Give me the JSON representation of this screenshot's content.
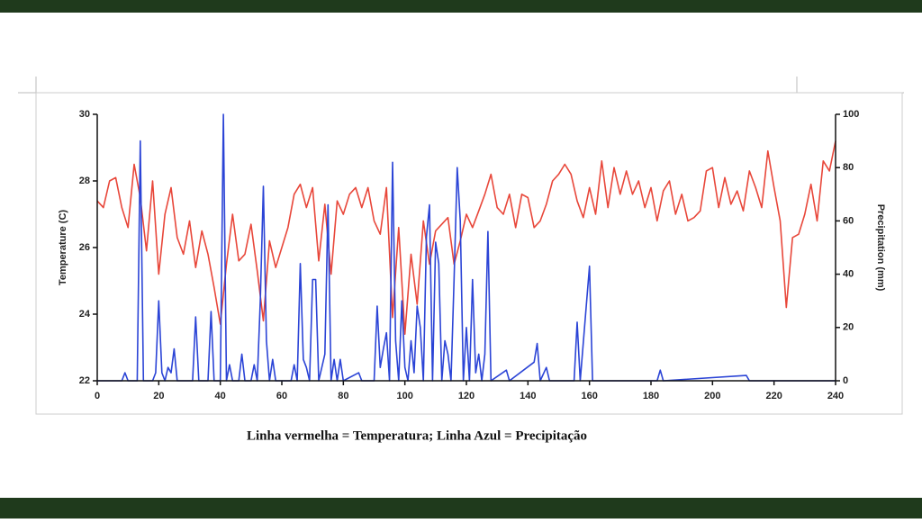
{
  "chart_data": {
    "type": "line",
    "ylabel": "Temperature (C)",
    "y2label": "Precipitation (mm)",
    "caption": "Linha vermelha = Temperatura; Linha Azul = Precipitação",
    "xlim": [
      0,
      240
    ],
    "xticks": [
      0,
      20,
      40,
      60,
      80,
      100,
      120,
      140,
      160,
      180,
      200,
      220,
      240
    ],
    "ylim": [
      22,
      30
    ],
    "yticks": [
      22,
      24,
      26,
      28,
      30
    ],
    "y2lim": [
      0,
      100
    ],
    "y2ticks": [
      0,
      20,
      40,
      60,
      80,
      100
    ],
    "series": [
      {
        "color": "#e8473a",
        "x": [
          0,
          2,
          4,
          6,
          8,
          10,
          12,
          14,
          16,
          18,
          20,
          22,
          24,
          26,
          28,
          30,
          32,
          34,
          36,
          38,
          40,
          42,
          44,
          46,
          48,
          50,
          52,
          54,
          56,
          58,
          60,
          62,
          64,
          66,
          68,
          70,
          72,
          74,
          76,
          78,
          80,
          82,
          84,
          86,
          88,
          90,
          92,
          94,
          96,
          98,
          100,
          102,
          104,
          106,
          108,
          110,
          112,
          114,
          116,
          118,
          120,
          122,
          124,
          126,
          128,
          130,
          132,
          134,
          136,
          138,
          140,
          142,
          144,
          146,
          148,
          150,
          152,
          154,
          156,
          158,
          160,
          162,
          164,
          166,
          168,
          170,
          172,
          174,
          176,
          178,
          180,
          182,
          184,
          186,
          188,
          190,
          192,
          194,
          196,
          198,
          200,
          202,
          204,
          206,
          208,
          210,
          212,
          214,
          216,
          218,
          220,
          222,
          224,
          226,
          228,
          230,
          232,
          234,
          236,
          238,
          240
        ],
        "values": [
          27.4,
          27.2,
          28.0,
          28.1,
          27.2,
          26.6,
          28.5,
          27.5,
          25.9,
          28.0,
          25.2,
          27.0,
          27.8,
          26.3,
          25.8,
          26.8,
          25.4,
          26.5,
          25.8,
          24.8,
          23.7,
          25.5,
          27.0,
          25.6,
          25.8,
          26.7,
          25.3,
          23.8,
          26.2,
          25.4,
          26.0,
          26.6,
          27.6,
          27.9,
          27.2,
          27.8,
          25.6,
          27.3,
          25.2,
          27.4,
          27.0,
          27.6,
          27.8,
          27.2,
          27.8,
          26.8,
          26.4,
          27.8,
          23.9,
          26.6,
          23.4,
          25.8,
          24.3,
          26.8,
          25.5,
          26.5,
          26.7,
          26.9,
          25.5,
          26.2,
          27.0,
          26.6,
          27.1,
          27.6,
          28.2,
          27.2,
          27.0,
          27.6,
          26.6,
          27.6,
          27.5,
          26.6,
          26.8,
          27.3,
          28.0,
          28.2,
          28.5,
          28.2,
          27.4,
          26.9,
          27.8,
          27.0,
          28.6,
          27.2,
          28.4,
          27.6,
          28.3,
          27.6,
          28.0,
          27.2,
          27.8,
          26.8,
          27.7,
          28.0,
          27.0,
          27.6,
          26.8,
          26.9,
          27.1,
          28.3,
          28.4,
          27.2,
          28.1,
          27.3,
          27.7,
          27.1,
          28.3,
          27.8,
          27.2,
          28.9,
          27.8,
          26.8,
          24.2,
          26.3,
          26.4,
          27.0,
          27.9,
          26.8,
          28.6,
          28.3,
          29.2
        ]
      },
      {
        "color": "#2b44d6",
        "axis": "y2",
        "x": [
          0,
          8,
          9,
          10,
          13,
          14,
          15,
          18,
          19,
          20,
          21,
          22,
          23,
          24,
          25,
          26,
          31,
          32,
          33,
          36,
          37,
          38,
          40,
          41,
          42,
          43,
          44,
          46,
          47,
          48,
          50,
          51,
          52,
          53,
          54,
          55,
          56,
          57,
          58,
          63,
          64,
          65,
          66,
          67,
          68,
          69,
          70,
          71,
          72,
          74,
          75,
          76,
          77,
          78,
          79,
          80,
          85,
          86,
          90,
          91,
          92,
          93,
          94,
          95,
          96,
          97,
          98,
          99,
          100,
          101,
          102,
          103,
          104,
          105,
          106,
          107,
          108,
          109,
          110,
          111,
          112,
          113,
          114,
          115,
          116,
          117,
          118,
          119,
          120,
          121,
          122,
          123,
          124,
          125,
          126,
          127,
          128,
          133,
          134,
          142,
          143,
          144,
          146,
          147,
          155,
          156,
          157,
          160,
          161,
          182,
          183,
          184,
          211,
          212,
          240
        ],
        "values": [
          0,
          0,
          3,
          0,
          0,
          90,
          0,
          0,
          3,
          30,
          3,
          0,
          5,
          3,
          12,
          0,
          0,
          24,
          0,
          0,
          26,
          0,
          0,
          100,
          0,
          6,
          0,
          0,
          10,
          0,
          0,
          6,
          0,
          30,
          73,
          15,
          0,
          8,
          0,
          0,
          6,
          0,
          44,
          8,
          5,
          0,
          38,
          38,
          0,
          10,
          66,
          0,
          8,
          0,
          8,
          0,
          3,
          0,
          0,
          28,
          5,
          12,
          18,
          0,
          82,
          15,
          0,
          30,
          5,
          0,
          15,
          3,
          28,
          20,
          0,
          54,
          66,
          0,
          52,
          44,
          0,
          15,
          10,
          0,
          38,
          80,
          60,
          0,
          20,
          0,
          38,
          3,
          10,
          0,
          10,
          56,
          0,
          4,
          0,
          7,
          14,
          0,
          5,
          0,
          0,
          22,
          0,
          43,
          0,
          0,
          4,
          0,
          2,
          0,
          0
        ]
      }
    ]
  }
}
